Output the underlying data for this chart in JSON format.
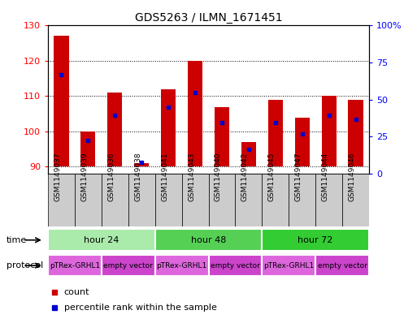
{
  "title": "GDS5263 / ILMN_1671451",
  "samples": [
    "GSM1149037",
    "GSM1149039",
    "GSM1149036",
    "GSM1149038",
    "GSM1149041",
    "GSM1149043",
    "GSM1149040",
    "GSM1149042",
    "GSM1149045",
    "GSM1149047",
    "GSM1149044",
    "GSM1149046"
  ],
  "count_values": [
    127,
    100,
    111,
    91,
    112,
    120,
    107,
    97,
    109,
    104,
    110,
    109
  ],
  "percentile_values": [
    62,
    18,
    35,
    3,
    40,
    50,
    30,
    12,
    30,
    22,
    35,
    32
  ],
  "ylim_left": [
    88,
    130
  ],
  "ylim_right": [
    0,
    100
  ],
  "yticks_left": [
    90,
    100,
    110,
    120,
    130
  ],
  "yticks_right": [
    0,
    25,
    50,
    75,
    100
  ],
  "time_groups": [
    {
      "label": "hour 24",
      "start": 0,
      "end": 4,
      "color": "#aaeaaa"
    },
    {
      "label": "hour 48",
      "start": 4,
      "end": 8,
      "color": "#55d055"
    },
    {
      "label": "hour 72",
      "start": 8,
      "end": 12,
      "color": "#33cc33"
    }
  ],
  "protocol_colors": [
    "#dd66dd",
    "#cc44cc"
  ],
  "protocol_groups": [
    {
      "label": "pTRex-GRHL1",
      "start": 0,
      "end": 2,
      "cid": 0
    },
    {
      "label": "empty vector",
      "start": 2,
      "end": 4,
      "cid": 1
    },
    {
      "label": "pTRex-GRHL1",
      "start": 4,
      "end": 6,
      "cid": 0
    },
    {
      "label": "empty vector",
      "start": 6,
      "end": 8,
      "cid": 1
    },
    {
      "label": "pTRex-GRHL1",
      "start": 8,
      "end": 10,
      "cid": 0
    },
    {
      "label": "empty vector",
      "start": 10,
      "end": 12,
      "cid": 1
    }
  ],
  "bar_color": "#cc0000",
  "blue_color": "#0000cc",
  "bar_width": 0.55,
  "base_value": 90,
  "legend_count_color": "#cc0000",
  "legend_percentile_color": "#0000cc",
  "sample_box_color": "#cccccc",
  "grid_color": "#000000"
}
